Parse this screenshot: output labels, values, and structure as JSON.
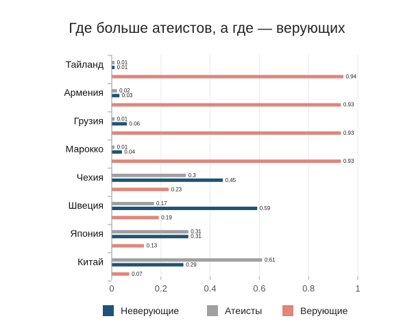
{
  "title": "Где больше атеистов, а где — верующих",
  "colors": {
    "nonbelievers": "#1e5473",
    "atheists": "#a0a0a0",
    "believers": "#e0867a",
    "axis": "#9aa6b6"
  },
  "legend": [
    {
      "key": "nonbelievers",
      "label": "Неверующие",
      "color": "#1e5473"
    },
    {
      "key": "atheists",
      "label": "Атеисты",
      "color": "#a0a0a0"
    },
    {
      "key": "believers",
      "label": "Верующие",
      "color": "#e0867a"
    }
  ],
  "chart_data": {
    "type": "bar",
    "orientation": "horizontal",
    "title": "Где больше атеистов, а где — верующих",
    "categories": [
      "Тайланд",
      "Армения",
      "Грузия",
      "Марокко",
      "Чехия",
      "Швеция",
      "Япония",
      "Китай"
    ],
    "series": [
      {
        "name": "Атеисты",
        "key": "atheists",
        "color": "#a0a0a0",
        "values": [
          0.01,
          0.02,
          0.01,
          0.01,
          0.3,
          0.17,
          0.31,
          0.61
        ],
        "labels": [
          "0.01",
          "0.02",
          "0.01",
          "0.01",
          "0.3",
          "0.17",
          "0.31",
          "0.61"
        ]
      },
      {
        "name": "Неверующие",
        "key": "nonbelievers",
        "color": "#1e5473",
        "values": [
          0.01,
          0.03,
          0.06,
          0.04,
          0.45,
          0.59,
          0.31,
          0.29
        ],
        "labels": [
          "0.01",
          "0.03",
          "0.06",
          "0.04",
          "0,45",
          "0.59",
          "0.31",
          "0.29"
        ]
      },
      {
        "name": "Верующие",
        "key": "believers",
        "color": "#e0867a",
        "values": [
          0.94,
          0.93,
          0.93,
          0.93,
          0.23,
          0.19,
          0.13,
          0.07
        ],
        "labels": [
          "0.94",
          "0.93",
          "0.93",
          "0.93",
          "0.23",
          "0.19",
          "0.13",
          "0.07"
        ]
      }
    ],
    "xlim": [
      0,
      1
    ],
    "xticks": [
      0,
      0.2,
      0.4,
      0.6,
      0.8,
      1
    ],
    "xtick_labels": [
      "0",
      "0.2",
      "0.4",
      "0.6",
      "0.8",
      "1"
    ],
    "grid": true,
    "legend_position": "bottom"
  }
}
